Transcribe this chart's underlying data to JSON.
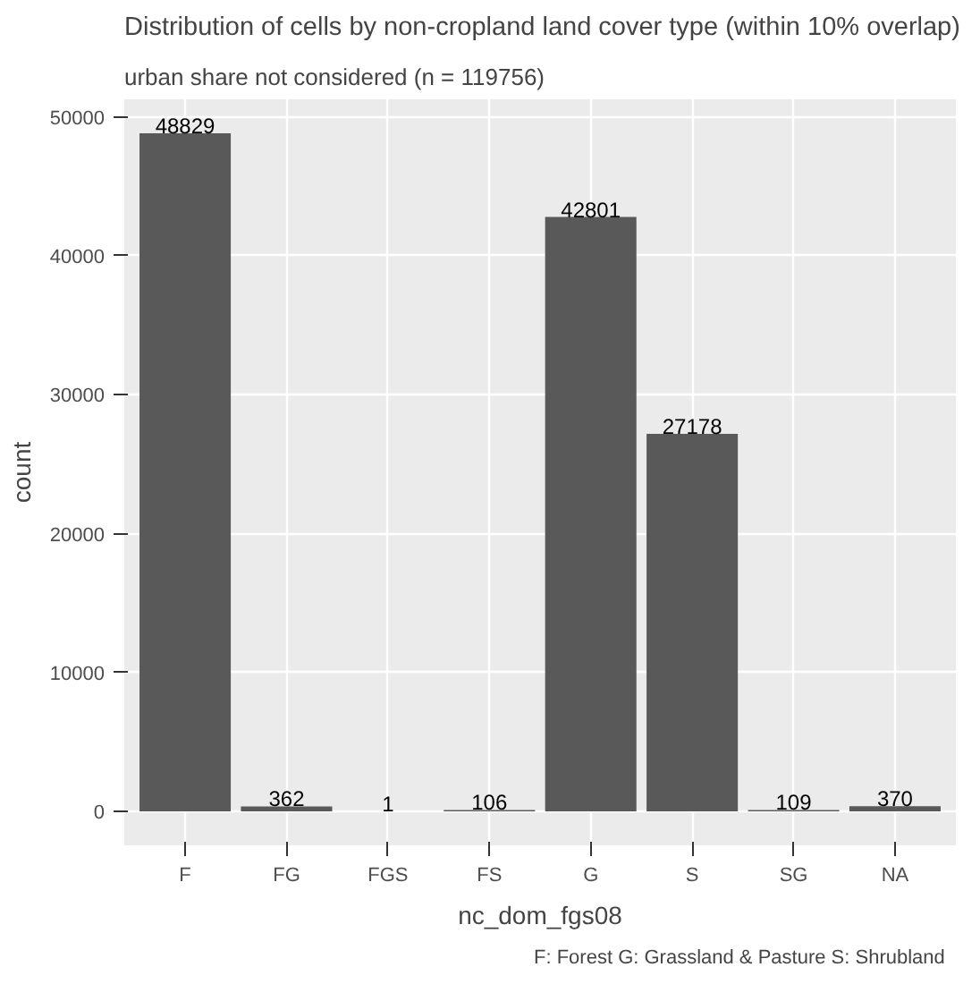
{
  "chart_data": {
    "type": "bar",
    "title": "Distribution of cells by non-cropland land cover type (within 10% overlap)",
    "subtitle": "urban share not considered (n = 119756)",
    "xlabel": "nc_dom_fgs08",
    "ylabel": "count",
    "categories": [
      "F",
      "FG",
      "FGS",
      "FS",
      "G",
      "S",
      "SG",
      "NA"
    ],
    "values": [
      48829,
      362,
      1,
      106,
      42801,
      27178,
      109,
      370
    ],
    "color": "#595959",
    "data_labels": true,
    "grid": true,
    "ylim": [
      -2441,
      51270
    ],
    "yticks": [
      0,
      10000,
      20000,
      30000,
      40000,
      50000
    ],
    "annotations": [
      "F: Forest  G: Grassland & Pasture  S: Shrubland"
    ]
  }
}
